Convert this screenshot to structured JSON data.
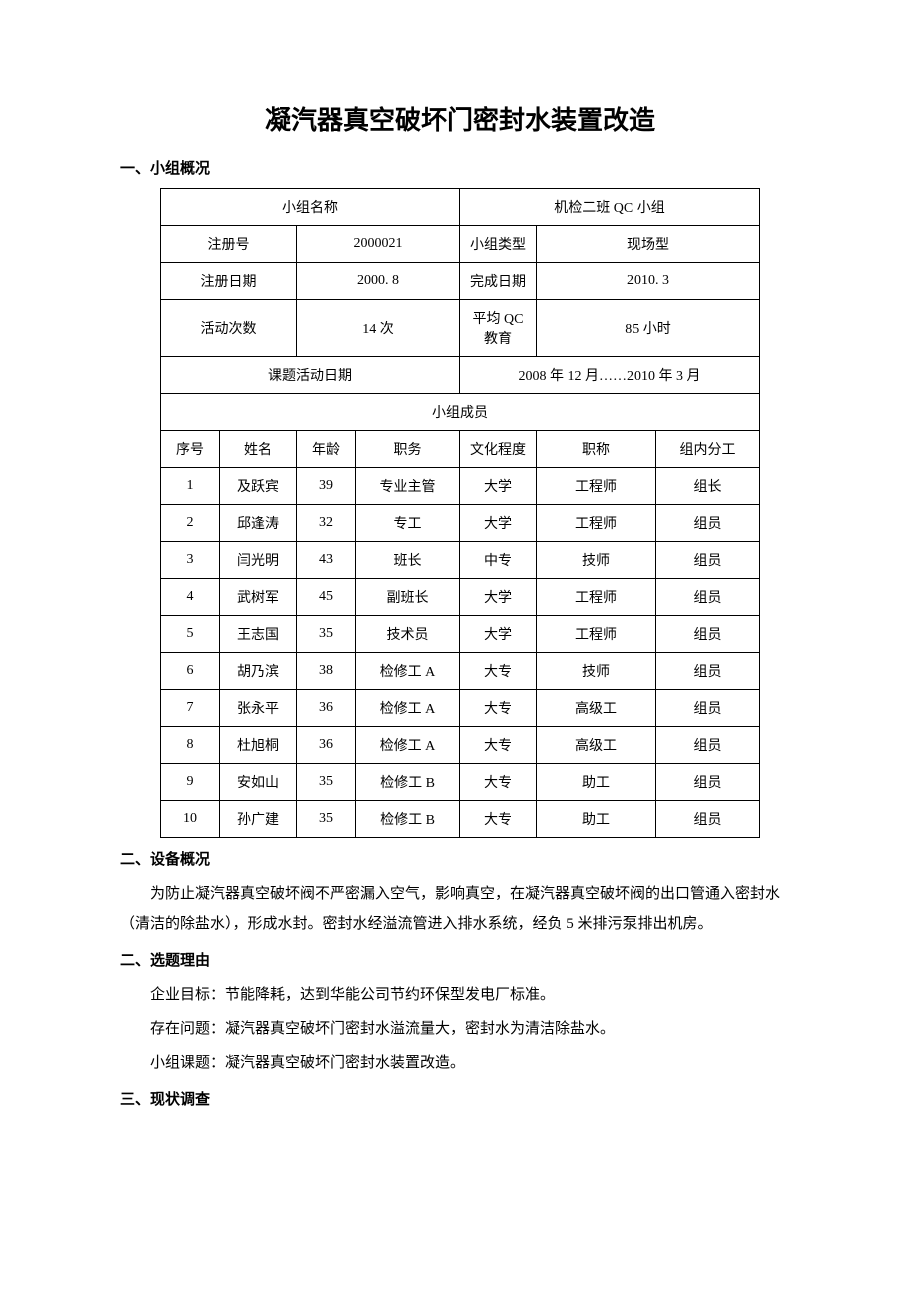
{
  "doc_title": "凝汽器真空破坏门密封水装置改造",
  "section1_heading": "一、小组概况",
  "info_table": {
    "r1_left_label": "小组名称",
    "r1_right_value": "机检二班 QC 小组",
    "r2_c1_label": "注册号",
    "r2_c2_value": "2000021",
    "r2_c3_label": "小组类型",
    "r2_c4_value": "现场型",
    "r3_c1_label": "注册日期",
    "r3_c2_value": "2000. 8",
    "r3_c3_label": "完成日期",
    "r3_c4_value": "2010. 3",
    "r4_c1_label": "活动次数",
    "r4_c2_value": "14 次",
    "r4_c3_label": "平均 QC 教育",
    "r4_c4_value": "85 小时",
    "r5_left_label": "课题活动日期",
    "r5_right_value": "2008 年 12 月……2010 年 3 月",
    "members_header": "小组成员",
    "member_cols": [
      "序号",
      "姓名",
      "年龄",
      "职务",
      "文化程度",
      "职称",
      "组内分工"
    ],
    "members": [
      [
        "1",
        "及跃宾",
        "39",
        "专业主管",
        "大学",
        "工程师",
        "组长"
      ],
      [
        "2",
        "邱逢涛",
        "32",
        "专工",
        "大学",
        "工程师",
        "组员"
      ],
      [
        "3",
        "闫光明",
        "43",
        "班长",
        "中专",
        "技师",
        "组员"
      ],
      [
        "4",
        "武树军",
        "45",
        "副班长",
        "大学",
        "工程师",
        "组员"
      ],
      [
        "5",
        "王志国",
        "35",
        "技术员",
        "大学",
        "工程师",
        "组员"
      ],
      [
        "6",
        "胡乃滨",
        "38",
        "检修工 A",
        "大专",
        "技师",
        "组员"
      ],
      [
        "7",
        "张永平",
        "36",
        "检修工 A",
        "大专",
        "高级工",
        "组员"
      ],
      [
        "8",
        "杜旭桐",
        "36",
        "检修工 A",
        "大专",
        "高级工",
        "组员"
      ],
      [
        "9",
        "安如山",
        "35",
        "检修工 B",
        "大专",
        "助工",
        "组员"
      ],
      [
        "10",
        "孙广建",
        "35",
        "检修工 B",
        "大专",
        "助工",
        "组员"
      ]
    ]
  },
  "section2_heading": "二、设备概况",
  "section2_p1": "为防止凝汽器真空破坏阀不严密漏入空气，影响真空，在凝汽器真空破坏阀的出口管通入密封水（清洁的除盐水），形成水封。密封水经溢流管进入排水系统，经负 5 米排污泵排出机房。",
  "section3_heading": "二、选题理由",
  "section3_l1": "企业目标：节能降耗，达到华能公司节约环保型发电厂标准。",
  "section3_l2": "存在问题：凝汽器真空破坏门密封水溢流量大，密封水为清洁除盐水。",
  "section3_l3": "小组课题：凝汽器真空破坏门密封水装置改造。",
  "section4_heading": "三、现状调查",
  "col_widths": [
    "50px",
    "68px",
    "50px",
    "95px",
    "95px",
    "110px",
    "95px"
  ]
}
